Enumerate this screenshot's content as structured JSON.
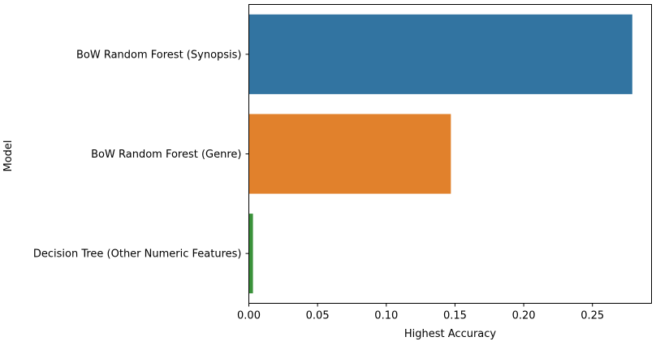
{
  "chart_data": {
    "type": "bar",
    "orientation": "horizontal",
    "title": "",
    "xlabel": "Highest Accuracy",
    "ylabel": "Model",
    "categories": [
      "BoW Random Forest (Synopsis)",
      "BoW Random Forest (Genre)",
      "Decision Tree (Other Numeric Features)"
    ],
    "values": [
      0.279,
      0.147,
      0.003
    ],
    "colors": [
      "#3274a1",
      "#e1812c",
      "#3a923a"
    ],
    "xlim": [
      0,
      0.293
    ],
    "xticks": [
      0.0,
      0.05,
      0.1,
      0.15,
      0.2,
      0.25
    ],
    "xtick_labels": [
      "0.00",
      "0.05",
      "0.10",
      "0.15",
      "0.20",
      "0.25"
    ],
    "grid": false,
    "legend": "none"
  }
}
